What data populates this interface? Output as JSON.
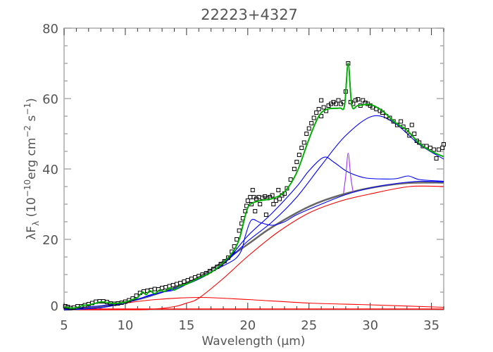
{
  "chart_data": {
    "type": "line",
    "title": "22223+4327",
    "xlabel": "Wavelength (μm)",
    "ylabel": {
      "main": "λF",
      "sub": "λ",
      "paren_open": " (10",
      "exp1": "−10",
      "unit1": "erg cm",
      "exp2": "−2",
      "unit2": " s",
      "exp3": "−1",
      "paren_close": ")"
    },
    "xlim": [
      5,
      36
    ],
    "ylim": [
      0,
      80
    ],
    "xticks": [
      5,
      10,
      15,
      20,
      25,
      30,
      35
    ],
    "yticks": [
      0,
      20,
      40,
      60,
      80
    ],
    "grid": false,
    "colors": {
      "data": "#000000",
      "total_fit": "#00b000",
      "components": "#0000ff",
      "continuum": "#666666",
      "blackbody": "#ff0000",
      "feature_28um": "#9b30ff",
      "axis": "#aaaaaa"
    },
    "observed": [
      [
        5.1,
        1
      ],
      [
        5.3,
        0.8
      ],
      [
        5.5,
        0.5
      ],
      [
        5.8,
        0.6
      ],
      [
        6.1,
        1
      ],
      [
        6.4,
        1
      ],
      [
        6.7,
        1.3
      ],
      [
        7,
        1.6
      ],
      [
        7.3,
        1.9
      ],
      [
        7.6,
        2.3
      ],
      [
        7.9,
        2.4
      ],
      [
        8.2,
        2.4
      ],
      [
        8.5,
        2.2
      ],
      [
        8.8,
        1.8
      ],
      [
        9.1,
        1.7
      ],
      [
        9.4,
        1.8
      ],
      [
        9.7,
        2
      ],
      [
        10,
        2.3
      ],
      [
        10.3,
        2.7
      ],
      [
        10.6,
        3.2
      ],
      [
        10.9,
        4
      ],
      [
        11.2,
        4.8
      ],
      [
        11.5,
        5.2
      ],
      [
        11.8,
        5.4
      ],
      [
        12.1,
        5.6
      ],
      [
        12.4,
        5.9
      ],
      [
        12.7,
        5.8
      ],
      [
        13,
        6.2
      ],
      [
        13.3,
        6.4
      ],
      [
        13.6,
        6.7
      ],
      [
        13.9,
        7
      ],
      [
        14.2,
        7.3
      ],
      [
        14.5,
        7.6
      ],
      [
        14.8,
        8
      ],
      [
        15.1,
        8.4
      ],
      [
        15.4,
        8.8
      ],
      [
        15.7,
        9.2
      ],
      [
        16,
        9.6
      ],
      [
        16.3,
        10
      ],
      [
        16.6,
        10.4
      ],
      [
        16.9,
        11
      ],
      [
        17.2,
        11.6
      ],
      [
        17.5,
        12.2
      ],
      [
        17.8,
        13
      ],
      [
        18.1,
        13.8
      ],
      [
        18.4,
        14.8
      ],
      [
        18.7,
        16.5
      ],
      [
        18.9,
        18
      ],
      [
        19.1,
        20
      ],
      [
        19.3,
        22.5
      ],
      [
        19.5,
        24.5
      ],
      [
        19.6,
        26
      ],
      [
        19.8,
        28
      ],
      [
        19.9,
        29.5
      ],
      [
        20,
        31
      ],
      [
        20.2,
        32
      ],
      [
        20.3,
        30
      ],
      [
        20.4,
        34
      ],
      [
        20.5,
        32
      ],
      [
        20.6,
        28
      ],
      [
        20.7,
        31.5
      ],
      [
        20.9,
        32
      ],
      [
        21,
        30
      ],
      [
        21.2,
        31.8
      ],
      [
        21.4,
        32.2
      ],
      [
        21.5,
        27
      ],
      [
        21.6,
        31.7
      ],
      [
        21.8,
        32
      ],
      [
        22,
        32.5
      ],
      [
        22.1,
        30
      ],
      [
        22.3,
        31
      ],
      [
        22.5,
        34
      ],
      [
        22.6,
        31.5
      ],
      [
        22.8,
        32.5
      ],
      [
        23,
        33
      ],
      [
        23.2,
        34.5
      ],
      [
        23.5,
        37
      ],
      [
        23.8,
        40
      ],
      [
        24,
        42
      ],
      [
        24.2,
        44
      ],
      [
        24.4,
        46
      ],
      [
        24.6,
        47.5
      ],
      [
        24.8,
        50
      ],
      [
        25,
        51.5
      ],
      [
        25.2,
        53
      ],
      [
        25.4,
        54.5
      ],
      [
        25.6,
        56
      ],
      [
        25.8,
        57
      ],
      [
        26,
        55
      ],
      [
        26,
        59.5
      ],
      [
        26.2,
        57.5
      ],
      [
        26.4,
        56.5
      ],
      [
        26.6,
        58
      ],
      [
        26.8,
        58.5
      ],
      [
        27,
        59
      ],
      [
        27.2,
        58.5
      ],
      [
        27.4,
        59.5
      ],
      [
        27.6,
        58.5
      ],
      [
        27.8,
        59
      ],
      [
        28,
        62
      ],
      [
        28.2,
        70
      ],
      [
        28.4,
        59
      ],
      [
        28.6,
        58.5
      ],
      [
        28.8,
        59.5
      ],
      [
        29,
        59.8
      ],
      [
        29.2,
        58
      ],
      [
        29.4,
        59.5
      ],
      [
        29.6,
        58.8
      ],
      [
        29.8,
        58.5
      ],
      [
        30,
        58
      ],
      [
        30.2,
        57.5
      ],
      [
        30.5,
        57
      ],
      [
        30.8,
        56.5
      ],
      [
        31,
        56
      ],
      [
        31.3,
        55
      ],
      [
        31.6,
        54.5
      ],
      [
        31.9,
        53.5
      ],
      [
        32.2,
        52.5
      ],
      [
        32.5,
        53.5
      ],
      [
        32.7,
        52
      ],
      [
        33,
        51
      ],
      [
        33.2,
        49.5
      ],
      [
        33.4,
        52.5
      ],
      [
        33.6,
        50
      ],
      [
        33.8,
        48
      ],
      [
        34,
        47.5
      ],
      [
        34.3,
        46.5
      ],
      [
        34.6,
        46.5
      ],
      [
        34.9,
        46
      ],
      [
        35.2,
        45.5
      ],
      [
        35.4,
        43
      ],
      [
        35.6,
        45.5
      ],
      [
        35.9,
        46
      ],
      [
        36,
        47
      ]
    ],
    "series": [
      {
        "role": "blackbody-cool",
        "color": "#ff0000",
        "points": [
          [
            5,
            0
          ],
          [
            10,
            0
          ],
          [
            12,
            0.1
          ],
          [
            14,
            0.9
          ],
          [
            15,
            1.9
          ],
          [
            16,
            3.3
          ],
          [
            18,
            8.9
          ],
          [
            20,
            15.2
          ],
          [
            22.4,
            21.9
          ],
          [
            25,
            27.5
          ],
          [
            27.5,
            30.8
          ],
          [
            30,
            32.9
          ],
          [
            33.2,
            35
          ],
          [
            36,
            35
          ]
        ]
      },
      {
        "role": "blackbody-warm",
        "color": "#ff0000",
        "points": [
          [
            5,
            0
          ],
          [
            8,
            0.9
          ],
          [
            10,
            1.9
          ],
          [
            12.5,
            2.9
          ],
          [
            16,
            3.5
          ],
          [
            20,
            2.9
          ],
          [
            25,
            1.9
          ],
          [
            30,
            1.4
          ],
          [
            36,
            0.7
          ]
        ]
      },
      {
        "role": "continuum",
        "color": "#666666",
        "points": [
          [
            5,
            0
          ],
          [
            7,
            0.5
          ],
          [
            10,
            2.2
          ],
          [
            12,
            3.9
          ],
          [
            15,
            7.6
          ],
          [
            17,
            11.4
          ],
          [
            20,
            18.6
          ],
          [
            22,
            23.5
          ],
          [
            25,
            29.3
          ],
          [
            27.5,
            32.5
          ],
          [
            30,
            34.6
          ],
          [
            33,
            36
          ],
          [
            36,
            36.1
          ]
        ]
      },
      {
        "role": "component-low",
        "color": "#0000ff",
        "points": [
          [
            5,
            0.3
          ],
          [
            7,
            0.8
          ],
          [
            9,
            1.6
          ],
          [
            11,
            3
          ],
          [
            12,
            4.2
          ],
          [
            13,
            5
          ],
          [
            14,
            5.6
          ],
          [
            15,
            7.2
          ],
          [
            16,
            8.7
          ],
          [
            17,
            10.6
          ],
          [
            18,
            13
          ],
          [
            19,
            16.5
          ]
        ]
      },
      {
        "role": "component-21um",
        "color": "#0000ff",
        "points": [
          [
            5,
            0
          ],
          [
            8,
            0.6
          ],
          [
            10,
            2
          ],
          [
            12,
            4
          ],
          [
            14,
            6
          ],
          [
            16,
            9
          ],
          [
            18,
            12.5
          ],
          [
            19,
            14.5
          ],
          [
            19.5,
            17
          ],
          [
            19.8,
            21
          ],
          [
            20.3,
            25.5
          ],
          [
            21,
            24.8
          ],
          [
            22,
            24
          ],
          [
            23,
            25
          ],
          [
            24,
            27
          ],
          [
            26,
            30
          ],
          [
            28,
            32.7
          ],
          [
            30,
            34.6
          ],
          [
            32,
            35.8
          ],
          [
            34,
            36.5
          ],
          [
            36,
            36.3
          ]
        ]
      },
      {
        "role": "component-26um",
        "color": "#0000ff",
        "points": [
          [
            5,
            0
          ],
          [
            8,
            0.6
          ],
          [
            10,
            2
          ],
          [
            12,
            4
          ],
          [
            14,
            6
          ],
          [
            16,
            9
          ],
          [
            18,
            13
          ],
          [
            20,
            21
          ],
          [
            22,
            27.5
          ],
          [
            24,
            35
          ],
          [
            25,
            39.5
          ],
          [
            26.2,
            43.3
          ],
          [
            27,
            42
          ],
          [
            28,
            39.5
          ],
          [
            29,
            38
          ],
          [
            30,
            37.3
          ],
          [
            32,
            37.2
          ],
          [
            33.1,
            38
          ],
          [
            34,
            37
          ],
          [
            36,
            36.5
          ]
        ]
      },
      {
        "role": "component-30um",
        "color": "#0000ff",
        "points": [
          [
            5,
            0
          ],
          [
            8,
            0.6
          ],
          [
            10,
            2
          ],
          [
            12,
            4
          ],
          [
            14,
            6
          ],
          [
            16,
            9
          ],
          [
            18,
            13
          ],
          [
            20,
            19.5
          ],
          [
            22,
            25
          ],
          [
            24,
            32
          ],
          [
            26,
            41
          ],
          [
            28,
            49.5
          ],
          [
            30.2,
            55
          ],
          [
            32,
            53
          ],
          [
            34,
            47
          ],
          [
            36,
            42.8
          ]
        ]
      },
      {
        "role": "feature-28um",
        "color": "#9b30ff",
        "points": [
          [
            27.8,
            32.6
          ],
          [
            28,
            38
          ],
          [
            28.2,
            44.5
          ],
          [
            28.4,
            38
          ],
          [
            28.6,
            33.4
          ]
        ]
      },
      {
        "role": "total-fit",
        "color": "#00b000",
        "points": [
          [
            5,
            0.8
          ],
          [
            5.5,
            0.5
          ],
          [
            6,
            0.6
          ],
          [
            6.5,
            1.2
          ],
          [
            7,
            1.4
          ],
          [
            7.5,
            1.8
          ],
          [
            8,
            2.2
          ],
          [
            8.5,
            2.1
          ],
          [
            9,
            1.8
          ],
          [
            9.5,
            1.9
          ],
          [
            10,
            2.2
          ],
          [
            10.5,
            2.8
          ],
          [
            11,
            3.5
          ],
          [
            11.4,
            5
          ],
          [
            11.7,
            4.3
          ],
          [
            12,
            5.4
          ],
          [
            12.4,
            4.6
          ],
          [
            12.8,
            5.6
          ],
          [
            13.2,
            5.2
          ],
          [
            13.6,
            6.2
          ],
          [
            14,
            5.6
          ],
          [
            14.5,
            6.8
          ],
          [
            15,
            7.3
          ],
          [
            16,
            9
          ],
          [
            17,
            10.6
          ],
          [
            18,
            13.4
          ],
          [
            18.8,
            16.5
          ],
          [
            19.3,
            20
          ],
          [
            19.6,
            24
          ],
          [
            19.9,
            28
          ],
          [
            20.2,
            30
          ],
          [
            21,
            31
          ],
          [
            22,
            31.6
          ],
          [
            23,
            33.5
          ],
          [
            24,
            39
          ],
          [
            25,
            48.5
          ],
          [
            25.8,
            55
          ],
          [
            26.5,
            57
          ],
          [
            27.5,
            57.3
          ],
          [
            27.9,
            58
          ],
          [
            28.2,
            70
          ],
          [
            28.5,
            58
          ],
          [
            29,
            58
          ],
          [
            30,
            58.3
          ],
          [
            31,
            56.5
          ],
          [
            32,
            53.3
          ],
          [
            33,
            51
          ],
          [
            34,
            47.3
          ],
          [
            35,
            45
          ],
          [
            36,
            43.5
          ]
        ]
      }
    ]
  }
}
